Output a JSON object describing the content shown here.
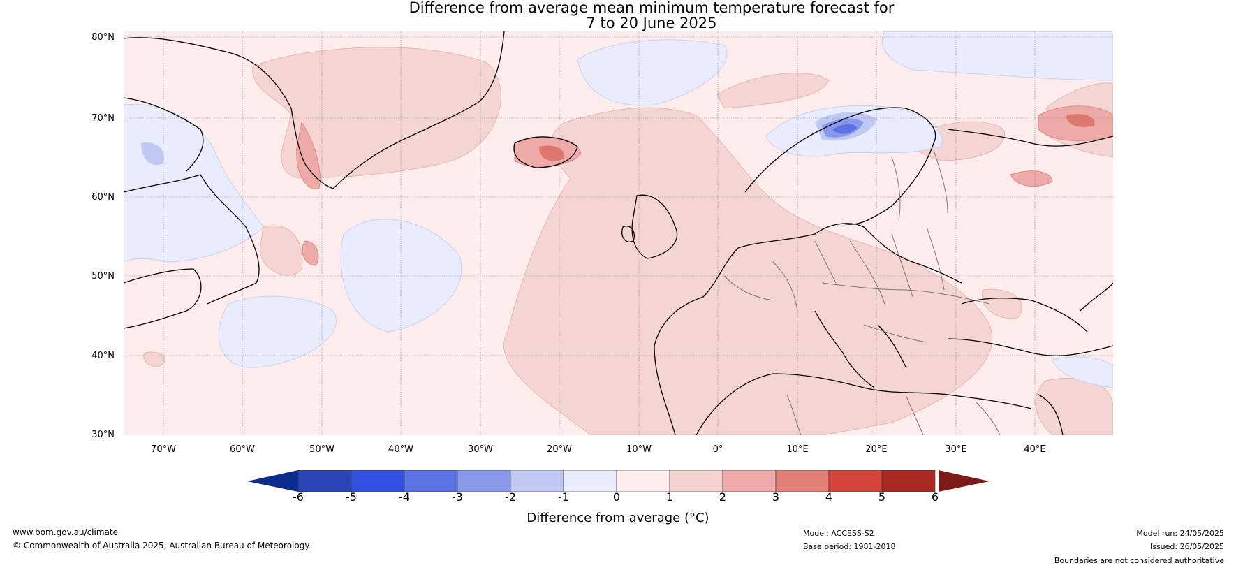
{
  "title": {
    "line1": "Difference from average mean minimum temperature forecast for",
    "line2": "7 to 20 June 2025"
  },
  "map": {
    "lat_labels": [
      "80°N",
      "70°N",
      "60°N",
      "50°N",
      "40°N",
      "30°N"
    ],
    "lon_labels": [
      "70°W",
      "60°W",
      "50°W",
      "40°W",
      "30°W",
      "20°W",
      "10°W",
      "0°",
      "10°E",
      "20°E",
      "30°E",
      "40°E"
    ]
  },
  "colorbar": {
    "ticks": [
      "-6",
      "-5",
      "-4",
      "-3",
      "-2",
      "-1",
      "0",
      "1",
      "2",
      "3",
      "4",
      "5",
      "6"
    ],
    "colors": [
      "#0d2b8f",
      "#2a45b8",
      "#3150df",
      "#5a72e4",
      "#8898eb",
      "#c0c9f3",
      "#e8ecfc",
      "#fceceb",
      "#f5d3d1",
      "#eeaaa6",
      "#e47f77",
      "#d6453b",
      "#aa2a23",
      "#7a1b1a"
    ],
    "label": "Difference from average (°C)"
  },
  "footer": {
    "website": "www.bom.gov.au/climate",
    "copyright": "© Commonwealth of Australia 2025, Australian Bureau of Meteorology",
    "model": "Model: ACCESS-S2",
    "base_period": "Base period: 1981-2018",
    "model_run": "Model run: 24/05/2025",
    "issued": "Issued: 26/05/2025",
    "disclaimer": "Boundaries are not considered authoritative"
  }
}
